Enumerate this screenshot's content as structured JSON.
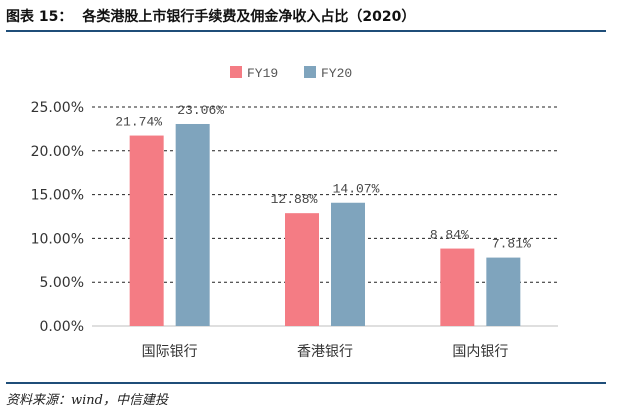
{
  "header": {
    "figure_label": "图表 15：",
    "title": "各类港股上市银行手续费及佣金净收入占比（2020）"
  },
  "source": {
    "prefix": "资料来源：",
    "text": "wind，中信建投"
  },
  "colors": {
    "FY19": "#f47c84",
    "FY20": "#7fa4bd",
    "rule": "#1f4e79",
    "grid": "#222222"
  },
  "chart_data": {
    "type": "bar",
    "title": "各类港股上市银行手续费及佣金净收入占比（2020）",
    "categories": [
      "国际银行",
      "香港银行",
      "国内银行"
    ],
    "series": [
      {
        "name": "FY19",
        "values": [
          21.74,
          12.88,
          8.84
        ],
        "labels": [
          "21.74%",
          "12.88%",
          "8.84%"
        ]
      },
      {
        "name": "FY20",
        "values": [
          23.06,
          14.07,
          7.81
        ],
        "labels": [
          "23.06%",
          "14.07%",
          "7.81%"
        ]
      }
    ],
    "ylim": [
      0,
      25
    ],
    "yticks": [
      0,
      5,
      10,
      15,
      20,
      25
    ],
    "ytick_labels": [
      "0.00%",
      "5.00%",
      "10.00%",
      "15.00%",
      "20.00%",
      "25.00%"
    ],
    "xlabel": "",
    "ylabel": "",
    "grid": "dashed horizontal",
    "legend": "top"
  }
}
